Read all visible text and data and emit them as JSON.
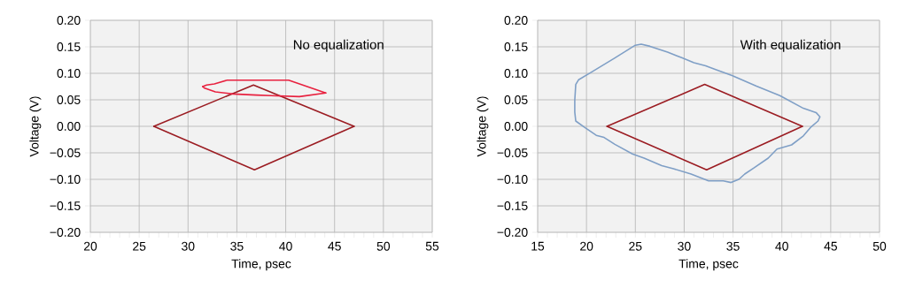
{
  "chart_data": [
    {
      "type": "line",
      "xlabel": "Time, psec",
      "ylabel": "Voltage (V)",
      "annotations": [
        "No equalization"
      ],
      "grid": true,
      "xlim": [
        20,
        55
      ],
      "xticks": [
        20,
        25,
        30,
        35,
        40,
        45,
        50,
        55
      ],
      "ylim": [
        -0.2,
        0.2
      ],
      "yticks": [
        {
          "value": -0.2,
          "label": "−0.20"
        },
        {
          "value": -0.15,
          "label": "−0.15"
        },
        {
          "value": -0.1,
          "label": "−0.10"
        },
        {
          "value": -0.05,
          "label": "−0.05"
        },
        {
          "value": 0,
          "label": "0.00"
        },
        {
          "value": 0.05,
          "label": "0.05"
        },
        {
          "value": 0.1,
          "label": "0.10"
        },
        {
          "value": 0.15,
          "label": "0.15"
        },
        {
          "value": 0.2,
          "label": "0.20"
        }
      ],
      "series": [
        {
          "color": "#9b1c22",
          "x": [
            26.5,
            36.7,
            47
          ],
          "values": [
            0,
            0.078,
            0
          ]
        },
        {
          "color": "#9b1c22",
          "x": [
            26.5,
            36.8,
            47
          ],
          "values": [
            0,
            -0.082,
            0
          ]
        },
        {
          "color": "#e8213f",
          "x": [
            31.5,
            31.9,
            32.7,
            34.0,
            40.3,
            44.1
          ],
          "values": [
            0.075,
            0.078,
            0.08,
            0.087,
            0.087,
            0.063
          ]
        },
        {
          "color": "#e8213f",
          "x": [
            31.5,
            31.7,
            32.8,
            34.6,
            37.0,
            38.5,
            41.4,
            44.1
          ],
          "values": [
            0.075,
            0.072,
            0.065,
            0.061,
            0.059,
            0.058,
            0.056,
            0.063
          ]
        }
      ]
    },
    {
      "type": "line",
      "xlabel": "Time, psec",
      "ylabel": "Voltage (V)",
      "annotations": [
        "With equalization"
      ],
      "grid": true,
      "xlim": [
        15,
        50
      ],
      "xticks": [
        15,
        20,
        25,
        30,
        35,
        40,
        45,
        50
      ],
      "ylim": [
        -0.2,
        0.2
      ],
      "yticks": [
        {
          "value": -0.2,
          "label": "−0.20"
        },
        {
          "value": -0.15,
          "label": "−0.15"
        },
        {
          "value": -0.1,
          "label": "−0.10"
        },
        {
          "value": -0.05,
          "label": "−0.05"
        },
        {
          "value": 0,
          "label": "0.00"
        },
        {
          "value": 0.05,
          "label": "0.05"
        },
        {
          "value": 0.1,
          "label": "0.10"
        },
        {
          "value": 0.15,
          "label": "0.15"
        },
        {
          "value": 0.2,
          "label": "0.20"
        }
      ],
      "series": [
        {
          "color": "#9b1c22",
          "x": [
            22.1,
            32.1,
            42.1
          ],
          "values": [
            0,
            0.079,
            0
          ]
        },
        {
          "color": "#9b1c22",
          "x": [
            22.1,
            32.3,
            42.1
          ],
          "values": [
            0,
            -0.082,
            0
          ]
        }
      ]
    }
  ]
}
